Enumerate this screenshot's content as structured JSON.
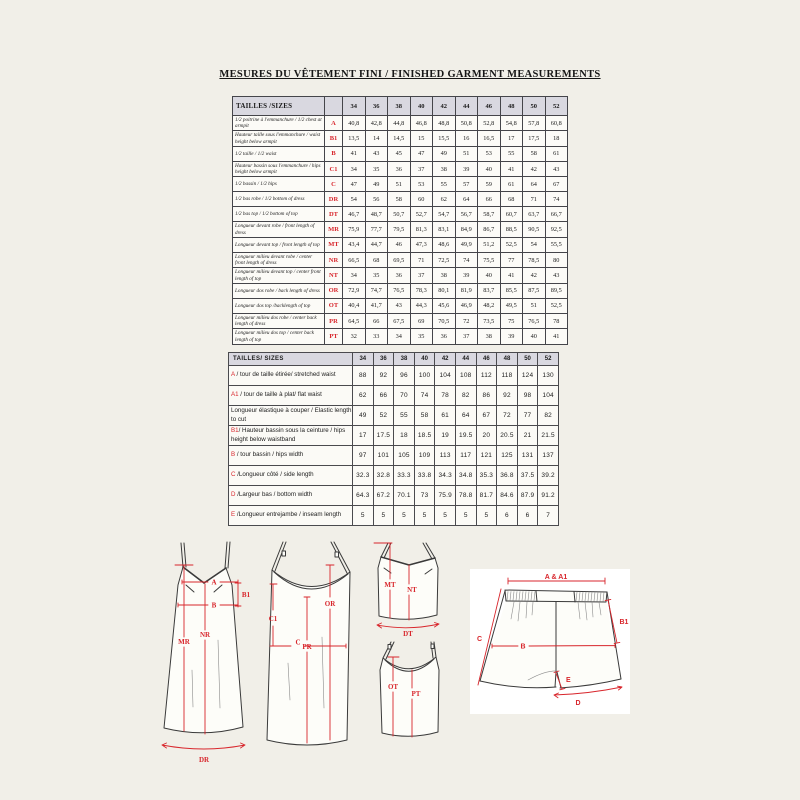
{
  "page": {
    "title": "MESURES DU VÊTEMENT FINI / FINISHED GARMENT MEASUREMENTS",
    "background": "#f1efe8",
    "accent_red": "#d8262c",
    "table_header_fill": "#d9d8e0"
  },
  "table1": {
    "header": "TAILLES /SIZES",
    "sizes": [
      "34",
      "36",
      "38",
      "40",
      "42",
      "44",
      "46",
      "48",
      "50",
      "52"
    ],
    "rows": [
      {
        "label": "1/2 poitrine à l'emmanchure   / 1/2 chest at armpit",
        "code": "A",
        "values": [
          "40,8",
          "42,8",
          "44,8",
          "46,8",
          "48,8",
          "50,8",
          "52,8",
          "54,8",
          "57,8",
          "60,8"
        ]
      },
      {
        "label": "Hauteur taille sous l'emmanchure / waist height below armpit",
        "code": "B1",
        "values": [
          "13,5",
          "14",
          "14,5",
          "15",
          "15,5",
          "16",
          "16,5",
          "17",
          "17,5",
          "18"
        ]
      },
      {
        "label": "1/2 taille / 1/2 waist",
        "code": "B",
        "values": [
          "41",
          "43",
          "45",
          "47",
          "49",
          "51",
          "53",
          "55",
          "58",
          "61"
        ]
      },
      {
        "label": "Hauteur bassin sous l'emmanchure / hips height below armpit",
        "code": "C1",
        "values": [
          "34",
          "35",
          "36",
          "37",
          "38",
          "39",
          "40",
          "41",
          "42",
          "43"
        ]
      },
      {
        "label": "1/2 bassin / 1/2 hips",
        "code": "C",
        "values": [
          "47",
          "49",
          "51",
          "53",
          "55",
          "57",
          "59",
          "61",
          "64",
          "67"
        ]
      },
      {
        "label": "1/2 bas robe / 1/2 bottom of dress",
        "code": "DR",
        "values": [
          "54",
          "56",
          "58",
          "60",
          "62",
          "64",
          "66",
          "68",
          "71",
          "74"
        ]
      },
      {
        "label": "1/2 bas  top / 1/2 bottom of top",
        "code": "DT",
        "values": [
          "46,7",
          "48,7",
          "50,7",
          "52,7",
          "54,7",
          "56,7",
          "58,7",
          "60,7",
          "63,7",
          "66,7"
        ]
      },
      {
        "label": "Longueur devant robe / front length of dress",
        "code": "MR",
        "values": [
          "75,9",
          "77,7",
          "79,5",
          "81,3",
          "83,1",
          "84,9",
          "86,7",
          "88,5",
          "90,5",
          "92,5"
        ]
      },
      {
        "label": "Longueur devant top / front length of top",
        "code": "MT",
        "values": [
          "43,4",
          "44,7",
          "46",
          "47,3",
          "48,6",
          "49,9",
          "51,2",
          "52,5",
          "54",
          "55,5"
        ]
      },
      {
        "label": "Longueur milieu devant robe  / center front length of dress",
        "code": "NR",
        "values": [
          "66,5",
          "68",
          "69,5",
          "71",
          "72,5",
          "74",
          "75,5",
          "77",
          "78,5",
          "80"
        ]
      },
      {
        "label": "Longueur milieu devant top  / center front length of top",
        "code": "NT",
        "values": [
          "34",
          "35",
          "36",
          "37",
          "38",
          "39",
          "40",
          "41",
          "42",
          "43"
        ]
      },
      {
        "label": "Longueur dos robe / back length of dress",
        "code": "OR",
        "values": [
          "72,9",
          "74,7",
          "76,5",
          "78,3",
          "80,1",
          "81,9",
          "83,7",
          "85,5",
          "87,5",
          "89,5"
        ]
      },
      {
        "label": "Longueur dos top /backlength of top",
        "code": "OT",
        "values": [
          "40,4",
          "41,7",
          "43",
          "44,3",
          "45,6",
          "46,9",
          "48,2",
          "49,5",
          "51",
          "52,5"
        ]
      },
      {
        "label": "Longueur milieu dos robe  / center back length of dress",
        "code": "PR",
        "values": [
          "64,5",
          "66",
          "67,5",
          "69",
          "70,5",
          "72",
          "73,5",
          "75",
          "76,5",
          "78"
        ]
      },
      {
        "label": "Longueur milieu dos top  / center back length of top",
        "code": "PT",
        "values": [
          "32",
          "33",
          "34",
          "35",
          "36",
          "37",
          "38",
          "39",
          "40",
          "41"
        ]
      }
    ]
  },
  "table2": {
    "header": "TAILLES/ SIZES",
    "sizes": [
      "34",
      "36",
      "38",
      "40",
      "42",
      "44",
      "46",
      "48",
      "50",
      "52"
    ],
    "rows": [
      {
        "code": "A",
        "label": " / tour de taille étirée/ stretched waist",
        "values": [
          "88",
          "92",
          "96",
          "100",
          "104",
          "108",
          "112",
          "118",
          "124",
          "130"
        ]
      },
      {
        "code": "A1",
        "label": " / tour de taille à plat/ flat  waist",
        "values": [
          "62",
          "66",
          "70",
          "74",
          "78",
          "82",
          "86",
          "92",
          "98",
          "104"
        ]
      },
      {
        "code": "",
        "label": "Longueur élastique à couper / Elastic length to cut",
        "values": [
          "49",
          "52",
          "55",
          "58",
          "61",
          "64",
          "67",
          "72",
          "77",
          "82"
        ]
      },
      {
        "code": "B1",
        "label": "/ Hauteur bassin sous la ceinture / hips height below waistband",
        "values": [
          "17",
          "17.5",
          "18",
          "18.5",
          "19",
          "19.5",
          "20",
          "20.5",
          "21",
          "21.5"
        ]
      },
      {
        "code": "B",
        "label": " / tour  bassin  /  hips width",
        "values": [
          "97",
          "101",
          "105",
          "109",
          "113",
          "117",
          "121",
          "125",
          "131",
          "137"
        ]
      },
      {
        "code": "C",
        "label": " /Longueur côté / side length",
        "values": [
          "32.3",
          "32.8",
          "33.3",
          "33.8",
          "34.3",
          "34.8",
          "35.3",
          "36.8",
          "37.5",
          "39.2"
        ]
      },
      {
        "code": "D",
        "label": " /Largeur bas  / bottom width",
        "values": [
          "64.3",
          "67.2",
          "70.1",
          "73",
          "75.9",
          "78.8",
          "81.7",
          "84.6",
          "87.9",
          "91.2"
        ]
      },
      {
        "code": "E",
        "label": " /Longueur entrejambe  / inseam length",
        "values": [
          "5",
          "5",
          "5",
          "5",
          "5",
          "5",
          "5",
          "6",
          "6",
          "7"
        ]
      }
    ]
  },
  "diagrams": {
    "dress_front": {
      "a": "A",
      "b1": "B1",
      "b": "B",
      "mr": "MR",
      "nr": "NR",
      "dr": "DR"
    },
    "dress_back": {
      "c1": "C1",
      "pr": "PR",
      "or": "OR",
      "c": "C"
    },
    "top_front": {
      "mt": "MT",
      "nt": "NT",
      "dt": "DT"
    },
    "top_back": {
      "ot": "OT",
      "pt": "PT"
    },
    "shorts": {
      "a_a1": "A & A1",
      "b1": "B1",
      "c": "C",
      "b": "B",
      "e": "E",
      "d": "D"
    }
  }
}
